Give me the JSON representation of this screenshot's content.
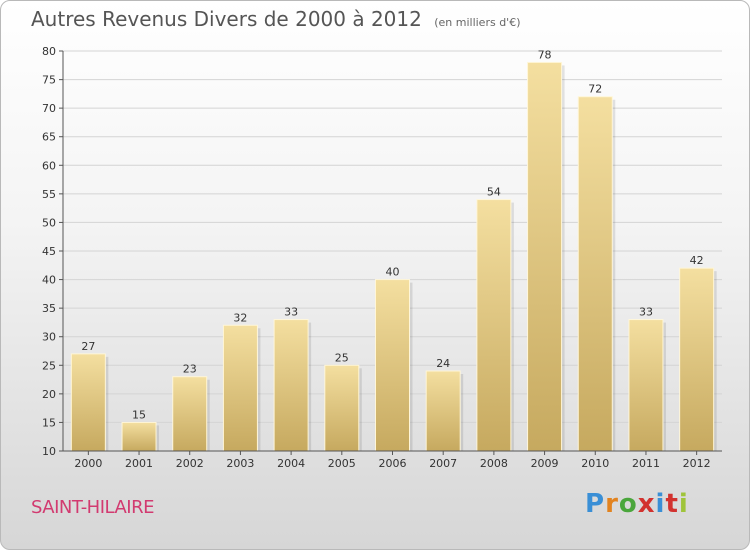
{
  "header": {
    "title": "Autres Revenus Divers de 2000 à 2012",
    "subtitle": "(en milliers d'€)"
  },
  "footer": {
    "commune": "SAINT-HILAIRE",
    "brand": "Proxiti",
    "brand_colors": [
      "#3a8fd6",
      "#e2831f",
      "#4aa63c",
      "#d2322f",
      "#3a8fd6",
      "#d2322f",
      "#9fc43a"
    ]
  },
  "colors": {
    "bar_top": "#f4dfa0",
    "bar_bottom": "#c6a95f",
    "grid": "#d4d4d4",
    "axis": "#555555"
  },
  "chart_data": {
    "type": "bar",
    "categories": [
      "2000",
      "2001",
      "2002",
      "2003",
      "2004",
      "2005",
      "2006",
      "2007",
      "2008",
      "2009",
      "2010",
      "2011",
      "2012"
    ],
    "values": [
      27,
      15,
      23,
      32,
      33,
      25,
      40,
      24,
      54,
      78,
      72,
      33,
      42
    ],
    "ylim": [
      10,
      80
    ],
    "yticks": [
      10,
      15,
      20,
      25,
      30,
      35,
      40,
      45,
      50,
      55,
      60,
      65,
      70,
      75,
      80
    ],
    "grid": true,
    "legend": "none"
  }
}
